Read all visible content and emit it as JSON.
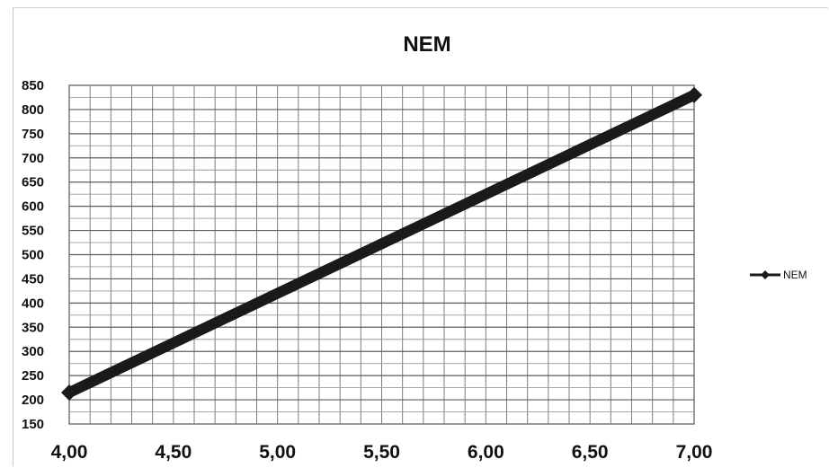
{
  "chart_data": {
    "type": "line",
    "title": "NEM",
    "xlabel": "",
    "ylabel": "",
    "xlim": [
      4.0,
      7.0
    ],
    "ylim": [
      150,
      850
    ],
    "x_ticks": [
      "4,00",
      "4,50",
      "5,00",
      "5,50",
      "6,00",
      "6,50",
      "7,00"
    ],
    "y_ticks": [
      "150",
      "200",
      "250",
      "300",
      "350",
      "400",
      "450",
      "500",
      "550",
      "600",
      "650",
      "700",
      "750",
      "800",
      "850"
    ],
    "grid": true,
    "legend": "right",
    "series": [
      {
        "name": "NEM",
        "color": "#1a1a1a",
        "marker": "diamond",
        "x": [
          4.0,
          7.0
        ],
        "y": [
          215,
          830
        ]
      }
    ]
  }
}
